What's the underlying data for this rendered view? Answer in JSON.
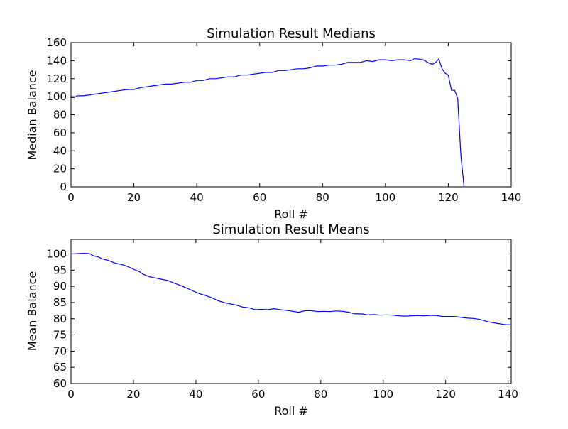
{
  "chart_data": [
    {
      "type": "line",
      "title": "Simulation Result Medians",
      "xlabel": "Roll #",
      "ylabel": "Median Balance",
      "xlim": [
        0,
        140
      ],
      "ylim": [
        0,
        160
      ],
      "xticks": [
        0,
        20,
        40,
        60,
        80,
        100,
        120,
        140
      ],
      "yticks": [
        0,
        20,
        40,
        60,
        80,
        100,
        120,
        140,
        160
      ],
      "grid": false,
      "color": "#0000ff",
      "x": [
        0,
        1,
        2,
        4,
        6,
        8,
        10,
        12,
        14,
        16,
        18,
        20,
        22,
        24,
        26,
        28,
        30,
        32,
        34,
        36,
        38,
        40,
        42,
        44,
        46,
        48,
        50,
        52,
        54,
        56,
        58,
        60,
        62,
        64,
        66,
        68,
        70,
        72,
        74,
        76,
        78,
        80,
        82,
        84,
        86,
        88,
        90,
        92,
        94,
        96,
        98,
        100,
        102,
        104,
        106,
        108,
        109,
        110,
        112,
        114,
        115,
        116,
        117,
        118,
        119,
        120,
        121,
        122,
        123,
        124,
        125
      ],
      "y": [
        99,
        99,
        101,
        101,
        102,
        103,
        104,
        105,
        106,
        107,
        108,
        108,
        110,
        111,
        112,
        113,
        114,
        114,
        115,
        116,
        116,
        118,
        118,
        120,
        120,
        121,
        122,
        122,
        124,
        124,
        125,
        126,
        127,
        127,
        129,
        129,
        130,
        131,
        131,
        132,
        134,
        134,
        135,
        135,
        136,
        138,
        138,
        138,
        140,
        139,
        141,
        141,
        140,
        141,
        141,
        140,
        142,
        142,
        141,
        137,
        136,
        138,
        142,
        131,
        126,
        124,
        107,
        107,
        98,
        35,
        0
      ]
    },
    {
      "type": "line",
      "title": "Simulation Result Means",
      "xlabel": "Roll #",
      "ylabel": "Mean Balance",
      "xlim": [
        0,
        141
      ],
      "ylim": [
        60,
        104.5
      ],
      "xticks": [
        0,
        20,
        40,
        60,
        80,
        100,
        120,
        140
      ],
      "yticks": [
        60,
        65,
        70,
        75,
        80,
        85,
        90,
        95,
        100
      ],
      "grid": false,
      "color": "#0000ff",
      "x": [
        0,
        2,
        4,
        6,
        7,
        9,
        10,
        12,
        14,
        16,
        18,
        20,
        22,
        23,
        25,
        27,
        29,
        31,
        33,
        35,
        37,
        39,
        41,
        43,
        45,
        47,
        49,
        51,
        53,
        55,
        57,
        59,
        61,
        63,
        65,
        67,
        69,
        71,
        73,
        75,
        77,
        79,
        81,
        83,
        85,
        87,
        89,
        91,
        93,
        95,
        97,
        99,
        101,
        103,
        105,
        107,
        109,
        111,
        113,
        115,
        117,
        119,
        123,
        125,
        127,
        129,
        131,
        133,
        135,
        137,
        139,
        141
      ],
      "y": [
        100,
        100.1,
        100.2,
        100.1,
        99.5,
        99,
        98.5,
        98,
        97.2,
        96.8,
        96.2,
        95.3,
        94.5,
        93.8,
        93,
        92.6,
        92.2,
        91.8,
        91,
        90.3,
        89.5,
        88.6,
        87.8,
        87.2,
        86.5,
        85.6,
        85,
        84.6,
        84.2,
        83.6,
        83.4,
        82.8,
        82.9,
        82.8,
        83.1,
        82.8,
        82.6,
        82.3,
        82,
        82.5,
        82.5,
        82.2,
        82.3,
        82.2,
        82.4,
        82.3,
        82,
        81.5,
        81.5,
        81.2,
        81.3,
        81.1,
        81.2,
        81.1,
        80.9,
        80.8,
        80.9,
        81,
        80.9,
        81,
        81,
        80.7,
        80.7,
        80.4,
        80.2,
        80.1,
        79.8,
        79.2,
        78.8,
        78.5,
        78.2,
        78.1
      ]
    }
  ]
}
